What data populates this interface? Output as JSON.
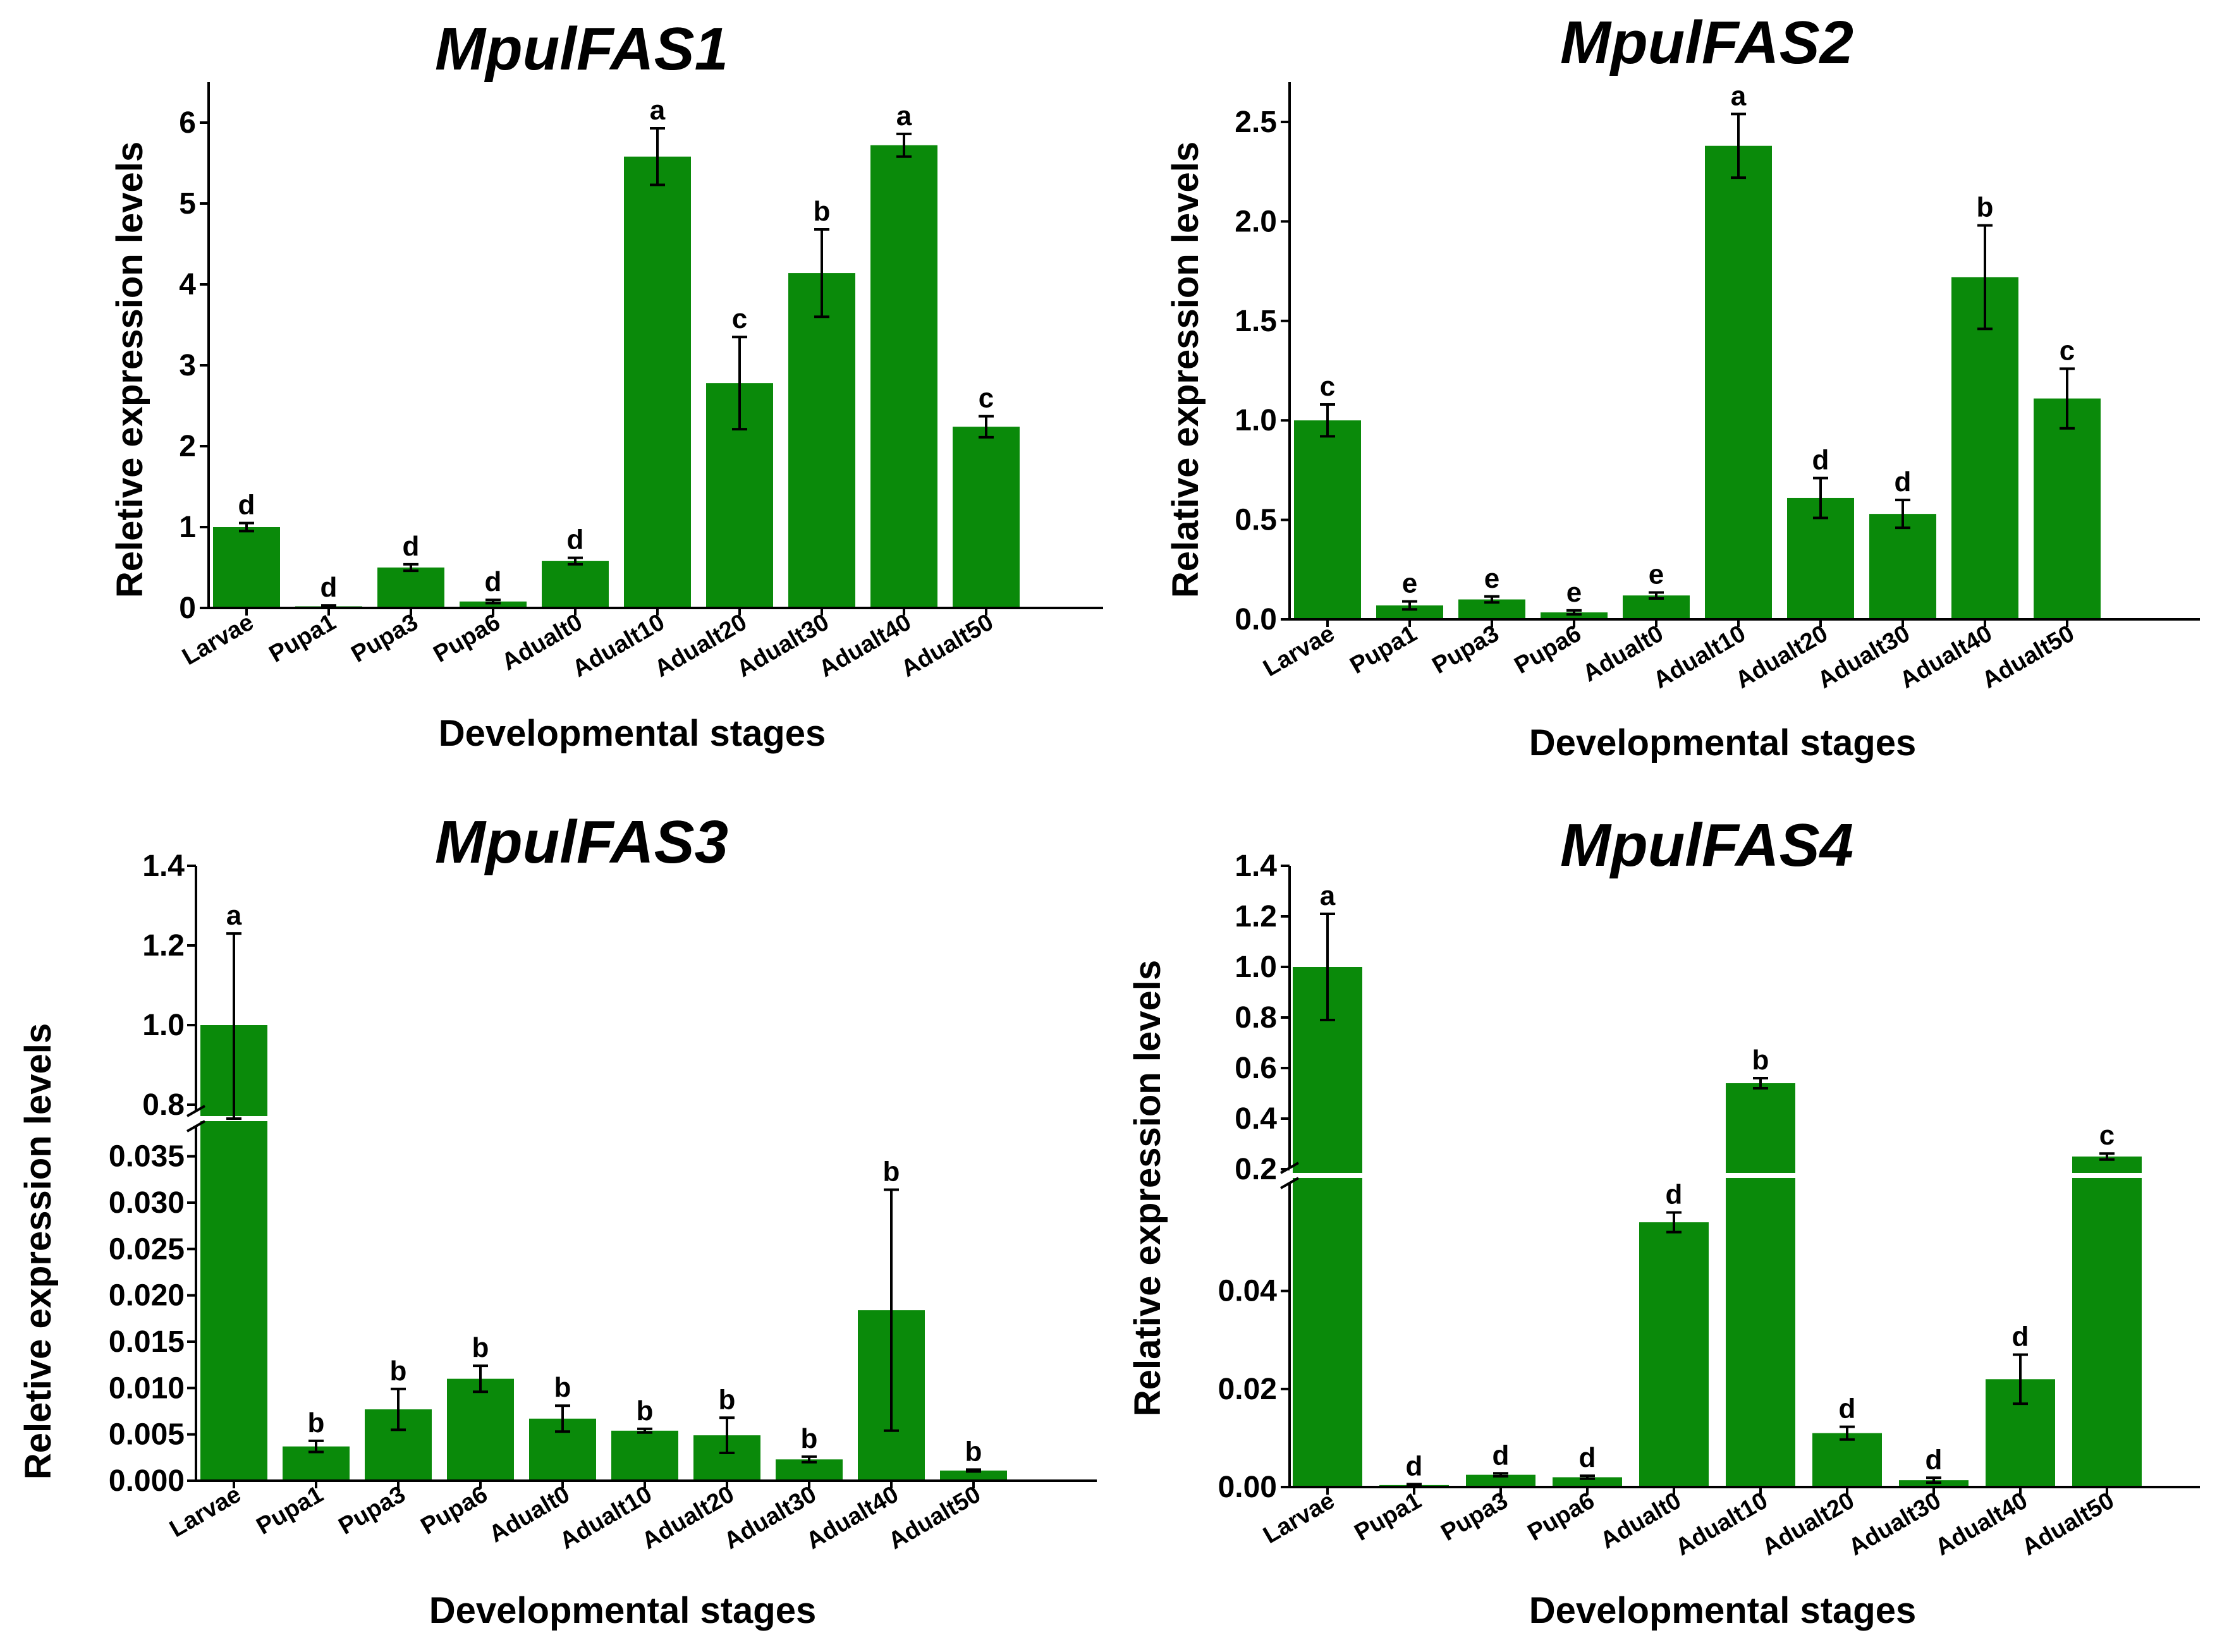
{
  "colors": {
    "bar": "#0a8a0a",
    "axis": "#000000",
    "error": "#000000",
    "background": "#ffffff"
  },
  "chart_data": [
    {
      "type": "bar",
      "title": "MpulFAS1",
      "xlabel": "Developmental stages",
      "ylabel": "Reletive expression levels",
      "categories": [
        "Larvae",
        "Pupa1",
        "Pupa3",
        "Pupa6",
        "Adualt0",
        "Adualt10",
        "Adualt20",
        "Adualt30",
        "Adualt40",
        "Adualt50"
      ],
      "values": [
        1.0,
        0.02,
        0.5,
        0.08,
        0.58,
        5.58,
        2.78,
        4.14,
        5.72,
        2.24
      ],
      "errors": [
        0.05,
        0.01,
        0.04,
        0.02,
        0.04,
        0.35,
        0.57,
        0.54,
        0.14,
        0.13
      ],
      "letters": [
        "d",
        "d",
        "d",
        "d",
        "d",
        "a",
        "c",
        "b",
        "a",
        "c"
      ],
      "ylim": [
        0,
        6.5
      ],
      "yticks": [
        0,
        1,
        2,
        3,
        4,
        5,
        6
      ],
      "ytick_labels": [
        "0",
        "1",
        "2",
        "3",
        "4",
        "5",
        "6"
      ]
    },
    {
      "type": "bar",
      "title": "MpulFAS2",
      "xlabel": "Developmental stages",
      "ylabel": "Relative expression levels",
      "categories": [
        "Larvae",
        "Pupa1",
        "Pupa3",
        "Pupa6",
        "Adualt0",
        "Adualt10",
        "Adualt20",
        "Adualt30",
        "Adualt40",
        "Adualt50"
      ],
      "values": [
        1.0,
        0.07,
        0.1,
        0.035,
        0.12,
        2.38,
        0.61,
        0.53,
        1.72,
        1.11
      ],
      "errors": [
        0.08,
        0.02,
        0.015,
        0.01,
        0.015,
        0.16,
        0.1,
        0.07,
        0.26,
        0.15
      ],
      "letters": [
        "c",
        "e",
        "e",
        "e",
        "e",
        "a",
        "d",
        "d",
        "b",
        "c"
      ],
      "ylim": [
        0,
        2.7
      ],
      "yticks": [
        0,
        0.5,
        1.0,
        1.5,
        2.0,
        2.5
      ],
      "ytick_labels": [
        "0.0",
        "0.5",
        "1.0",
        "1.5",
        "2.0",
        "2.5"
      ]
    },
    {
      "type": "bar",
      "title": "MpulFAS3",
      "xlabel": "Developmental stages",
      "ylabel": "Reletive expression levels",
      "axis_break": true,
      "categories": [
        "Larvae",
        "Pupa1",
        "Pupa3",
        "Pupa6",
        "Adualt0",
        "Adualt10",
        "Adualt20",
        "Adualt30",
        "Adualt40",
        "Adualt50"
      ],
      "values": [
        1.0,
        0.0037,
        0.0077,
        0.011,
        0.0067,
        0.0054,
        0.0049,
        0.0023,
        0.0184,
        0.0011
      ],
      "errors": [
        0.23,
        0.0006,
        0.0022,
        0.0014,
        0.0014,
        0.0002,
        0.0019,
        0.0003,
        0.013,
        0.0001
      ],
      "letters": [
        "a",
        "b",
        "b",
        "b",
        "b",
        "b",
        "b",
        "b",
        "b",
        "b"
      ],
      "lower_ylim": [
        0,
        0.0375
      ],
      "lower_yticks": [
        0,
        0.005,
        0.01,
        0.015,
        0.02,
        0.025,
        0.03,
        0.035
      ],
      "lower_ytick_labels": [
        "0.000",
        "0.005",
        "0.010",
        "0.015",
        "0.020",
        "0.025",
        "0.030",
        "0.035"
      ],
      "upper_ylim": [
        0.8,
        1.4
      ],
      "upper_yticks": [
        0.8,
        1.0,
        1.2,
        1.4
      ],
      "upper_ytick_labels": [
        "0.8",
        "1.0",
        "1.2",
        "1.4"
      ]
    },
    {
      "type": "bar",
      "title": "MpulFAS4",
      "xlabel": "Developmental stages",
      "ylabel": "Relative expression levels",
      "axis_break": true,
      "categories": [
        "Larvae",
        "Pupa1",
        "Pupa3",
        "Pupa6",
        "Adualt0",
        "Adualt10",
        "Adualt20",
        "Adualt30",
        "Adualt40",
        "Adualt50"
      ],
      "values": [
        1.0,
        0.0004,
        0.0025,
        0.002,
        0.054,
        0.54,
        0.011,
        0.0014,
        0.022,
        0.25
      ],
      "errors": [
        0.21,
        0.0002,
        0.0003,
        0.0003,
        0.002,
        0.02,
        0.0013,
        0.0005,
        0.005,
        0.012
      ],
      "letters": [
        "a",
        "d",
        "d",
        "d",
        "d",
        "b",
        "d",
        "d",
        "d",
        "c"
      ],
      "lower_ylim": [
        0,
        0.062
      ],
      "lower_yticks": [
        0,
        0.02,
        0.04
      ],
      "lower_ytick_labels": [
        "0.00",
        "0.02",
        "0.04"
      ],
      "upper_ylim": [
        0.2,
        1.4
      ],
      "upper_yticks": [
        0.2,
        0.4,
        0.6,
        0.8,
        1.0,
        1.2,
        1.4
      ],
      "upper_ytick_labels": [
        "0.2",
        "0.4",
        "0.6",
        "0.8",
        "1.0",
        "1.2",
        "1.4"
      ]
    }
  ]
}
